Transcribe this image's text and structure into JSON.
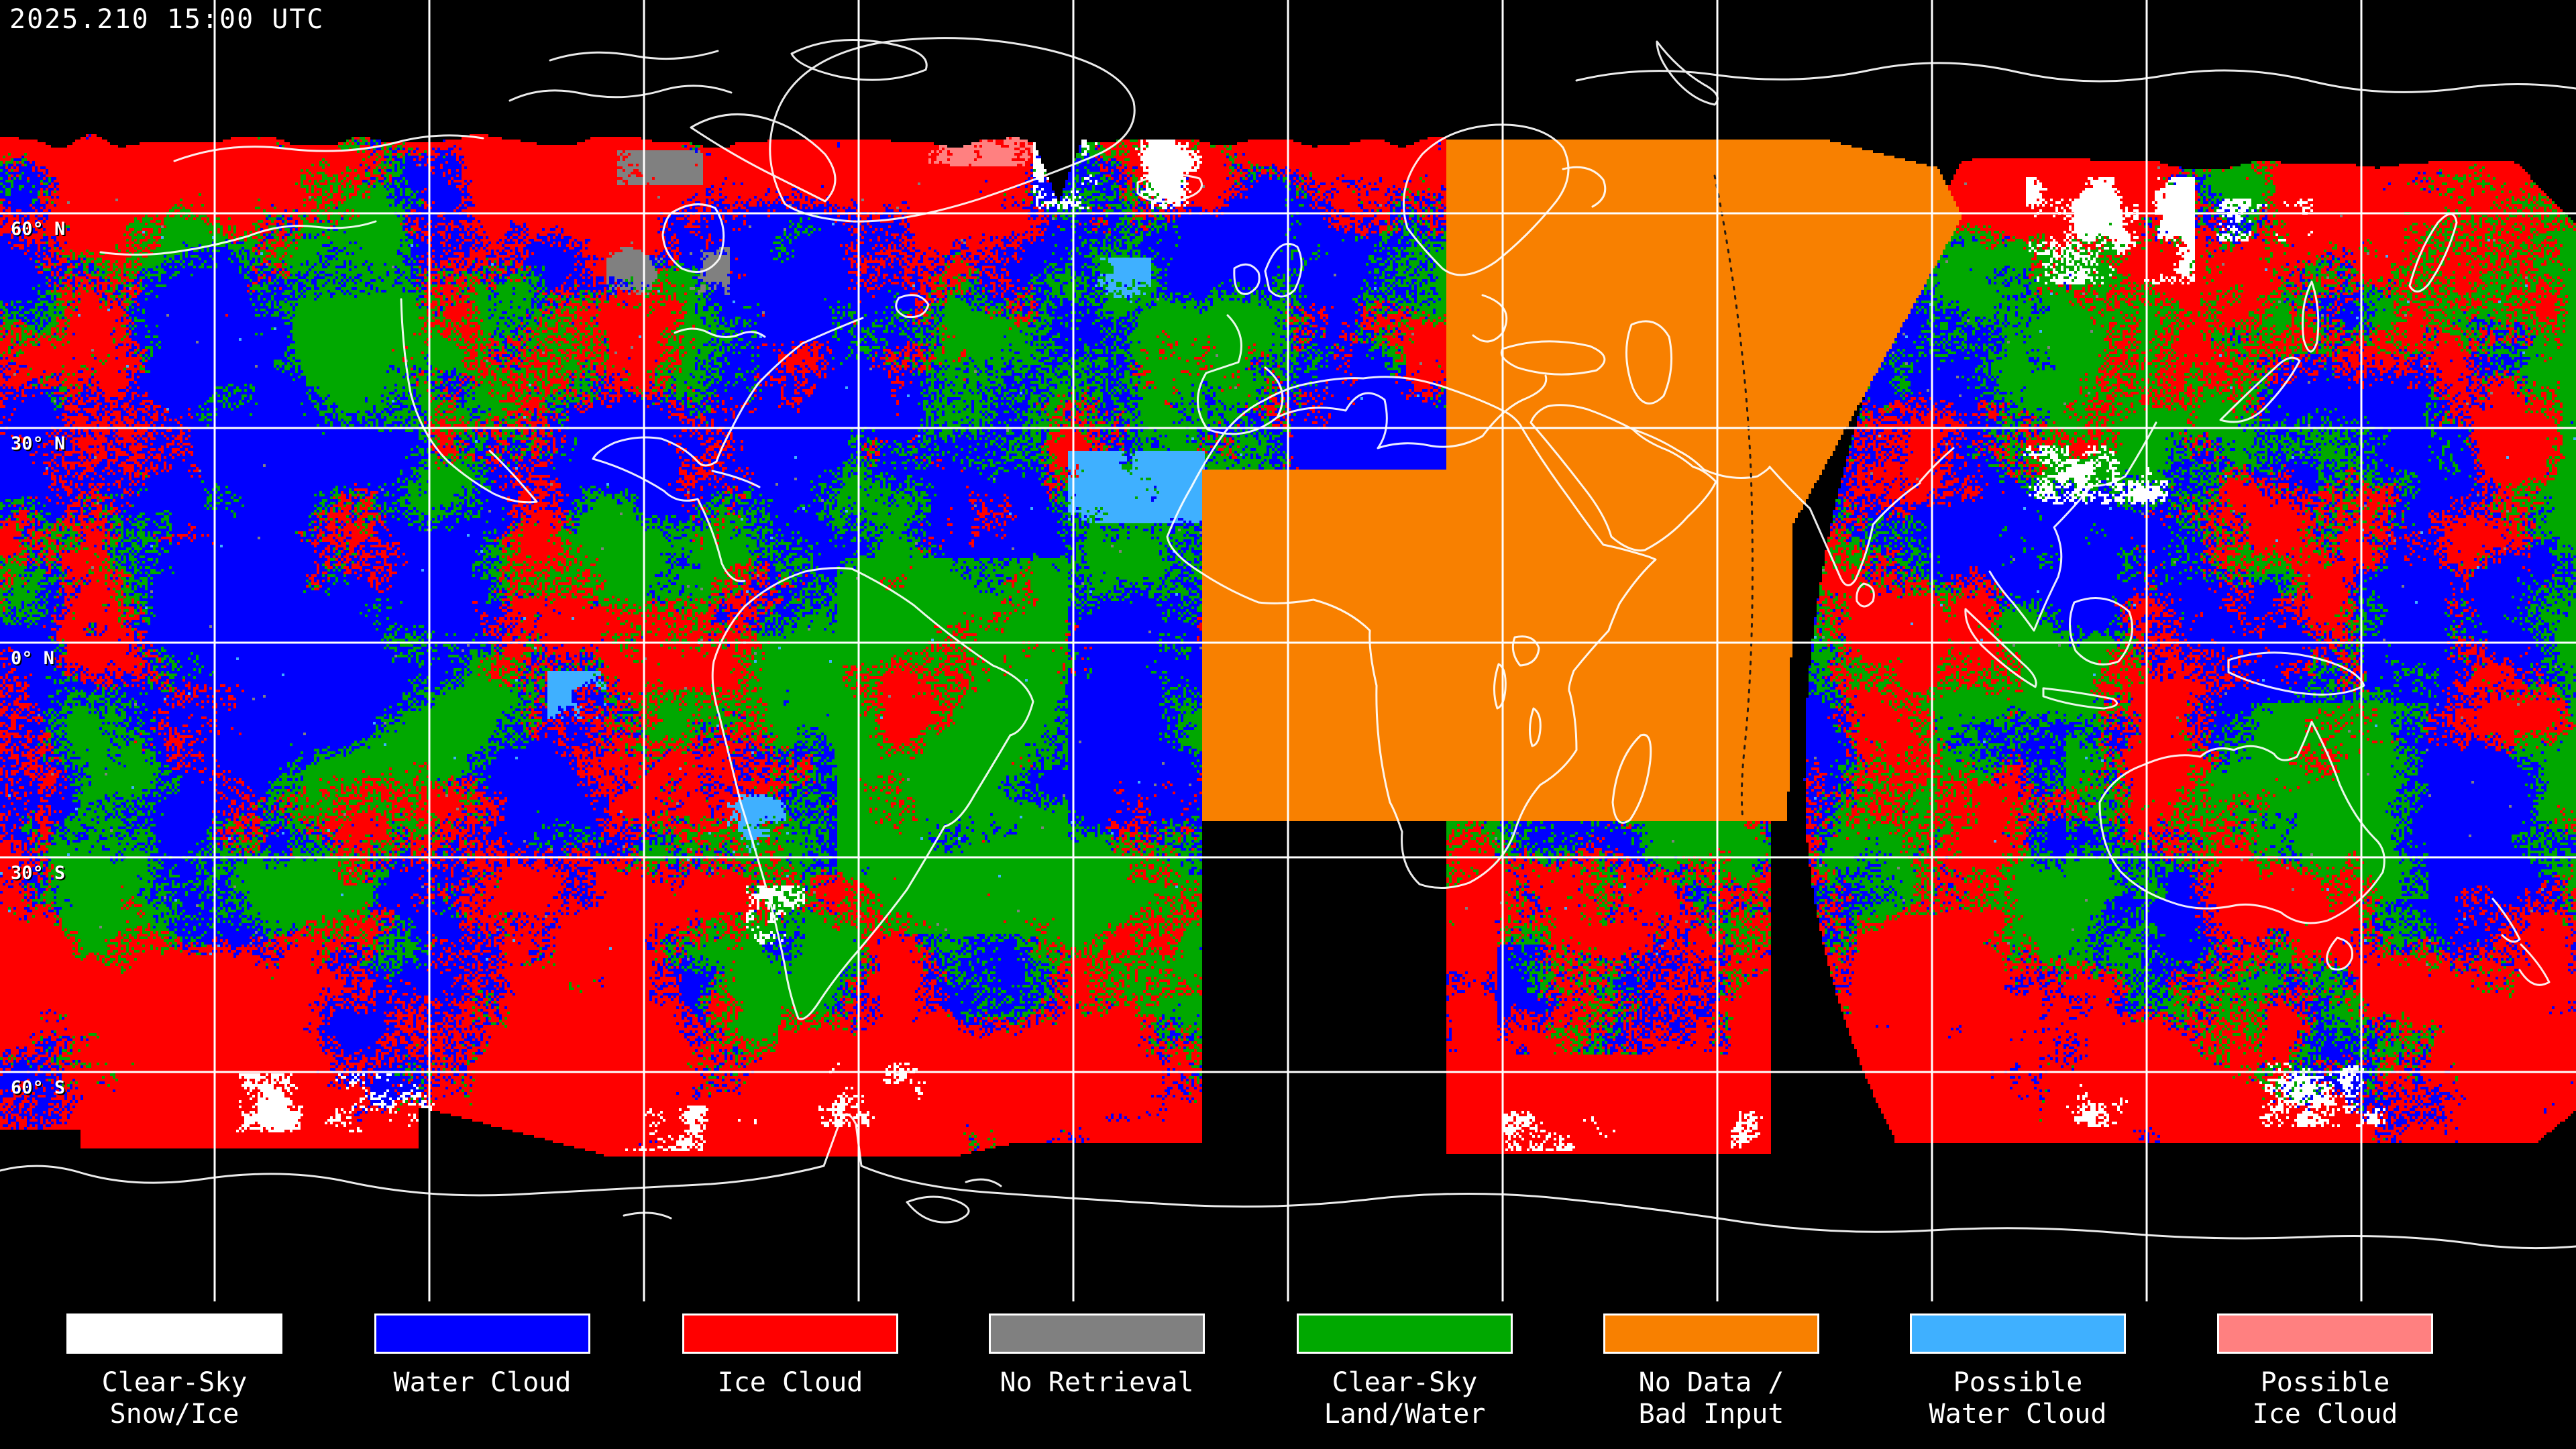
{
  "header": {
    "timestamp": "2025.210 15:00 UTC"
  },
  "map": {
    "latitude_labels": [
      "60° N",
      "30° N",
      "0° N",
      "30° S",
      "60° S"
    ],
    "background_color": "#000000",
    "grid_color": "#ffffff",
    "coastline_color": "#ffffff"
  },
  "legend": {
    "items": [
      {
        "id": "clear-sky-snow-ice",
        "label_lines": [
          "Clear-Sky",
          "Snow/Ice"
        ],
        "color": "#ffffff"
      },
      {
        "id": "water-cloud",
        "label_lines": [
          "Water Cloud"
        ],
        "color": "#0000ff"
      },
      {
        "id": "ice-cloud",
        "label_lines": [
          "Ice Cloud"
        ],
        "color": "#ff0000"
      },
      {
        "id": "no-retrieval",
        "label_lines": [
          "No Retrieval"
        ],
        "color": "#808080"
      },
      {
        "id": "clear-sky-land-water",
        "label_lines": [
          "Clear-Sky",
          "Land/Water"
        ],
        "color": "#00a800"
      },
      {
        "id": "no-data-bad-input",
        "label_lines": [
          "No Data /",
          "Bad Input"
        ],
        "color": "#f88000"
      },
      {
        "id": "possible-water-cloud",
        "label_lines": [
          "Possible",
          "Water Cloud"
        ],
        "color": "#3fb0ff"
      },
      {
        "id": "possible-ice-cloud",
        "label_lines": [
          "Possible",
          "Ice Cloud"
        ],
        "color": "#ff8080"
      }
    ]
  }
}
